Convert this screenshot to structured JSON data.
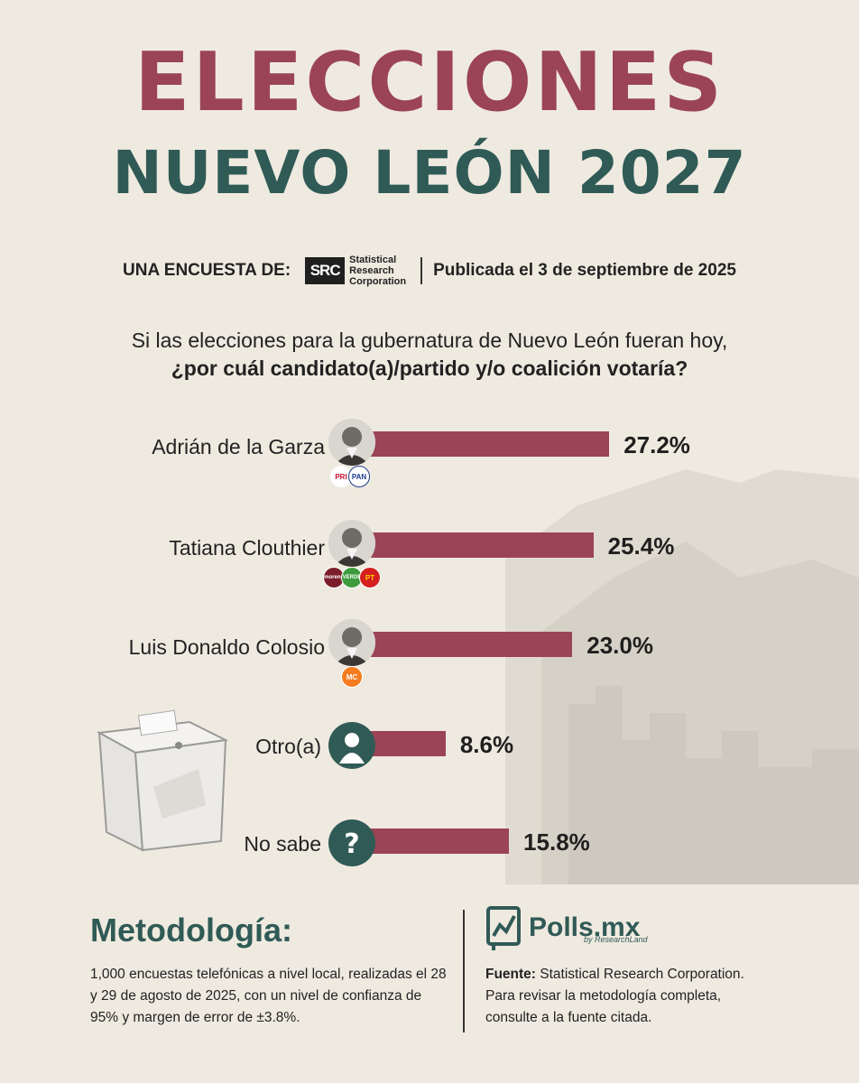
{
  "header": {
    "title_line1": "ELECCIONES",
    "title_line2": "NUEVO LEÓN 2027"
  },
  "source": {
    "prefix": "UNA ENCUESTA DE:",
    "logo_abbr": "SRC",
    "logo_line1": "Statistical",
    "logo_line2": "Research",
    "logo_line3": "Corporation",
    "published": "Publicada el 3 de septiembre de 2025"
  },
  "question": {
    "line1": "Si las elecciones para la gubernatura de Nuevo León fueran hoy,",
    "line2": "¿por cuál candidato(a)/partido y/o coalición votaría?"
  },
  "chart_data": {
    "type": "bar",
    "orientation": "horizontal",
    "categories": [
      "Adrián de la Garza",
      "Tatiana Clouthier",
      "Luis Donaldo Colosio",
      "Otro(a)",
      "No sabe"
    ],
    "values": [
      27.2,
      25.4,
      23.0,
      8.6,
      15.8
    ],
    "value_labels": [
      "27.2%",
      "25.4%",
      "23.0%",
      "8.6%",
      "15.8%"
    ],
    "parties": [
      [
        "PRI",
        "PAN"
      ],
      [
        "morena",
        "VERDE",
        "PT"
      ],
      [
        "MC"
      ],
      [],
      []
    ],
    "bar_color": "#9b4456",
    "icon_color": "#305a56",
    "grid": false
  },
  "methodology": {
    "title": "Metodología:",
    "text": "1,000 encuestas telefónicas a nivel local, realizadas el 28 y 29 de agosto de 2025, con un nivel de confianza de 95% y margen de error de ±3.8%."
  },
  "brand": {
    "name": "Polls.mx",
    "sub": "by ResearchLand"
  },
  "fuente": {
    "label": "Fuente:",
    "text": "Statistical Research Corporation. Para revisar la metodología completa, consulte a la fuente citada."
  },
  "colors": {
    "title_red": "#9b4456",
    "title_green": "#305a56",
    "background": "#efeae0"
  }
}
